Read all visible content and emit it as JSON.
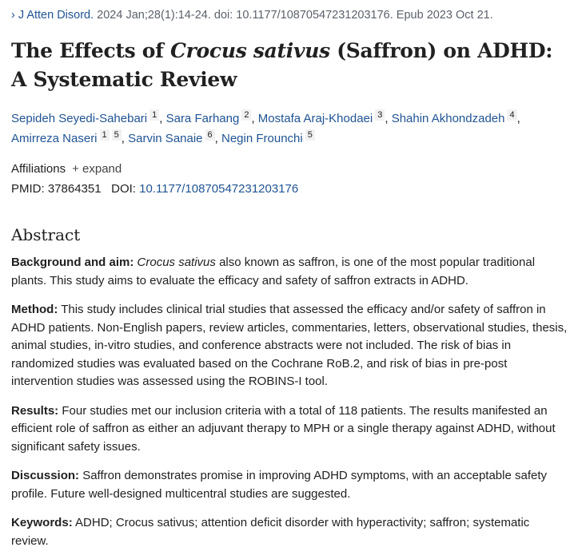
{
  "citation": {
    "journal": "J Atten Disord.",
    "details": "2024 Jan;28(1):14-24. doi: 10.1177/10870547231203176. Epub 2023 Oct 21."
  },
  "title": {
    "part1": "The Effects of ",
    "italic": "Crocus sativus",
    "part2": " (Saffron) on ADHD: A Systematic Review"
  },
  "authors": [
    {
      "name": "Sepideh Seyedi-Sahebari",
      "affs": [
        "1"
      ]
    },
    {
      "name": "Sara Farhang",
      "affs": [
        "2"
      ]
    },
    {
      "name": "Mostafa Araj-Khodaei",
      "affs": [
        "3"
      ]
    },
    {
      "name": "Shahin Akhondzadeh",
      "affs": [
        "4"
      ]
    },
    {
      "name": "Amirreza Naseri",
      "affs": [
        "1",
        "5"
      ]
    },
    {
      "name": "Sarvin Sanaie",
      "affs": [
        "6"
      ]
    },
    {
      "name": "Negin Frounchi",
      "affs": [
        "5"
      ]
    }
  ],
  "affiliations": {
    "label": "Affiliations",
    "expand": "+ expand"
  },
  "ids": {
    "pmid_label": "PMID:",
    "pmid": "37864351",
    "doi_label": "DOI:",
    "doi": "10.1177/10870547231203176"
  },
  "abstract": {
    "heading": "Abstract",
    "background": {
      "label": "Background and aim:",
      "italic": "Crocus sativus",
      "text": " also known as saffron, is one of the most popular traditional plants. This study aims to evaluate the efficacy and safety of saffron extracts in ADHD."
    },
    "method": {
      "label": "Method:",
      "text": " This study includes clinical trial studies that assessed the efficacy and/or safety of saffron in ADHD patients. Non-English papers, review articles, commentaries, letters, observational studies, thesis, animal studies, in-vitro studies, and conference abstracts were not included. The risk of bias in randomized studies was evaluated based on the Cochrane RoB.2, and risk of bias in pre-post intervention studies was assessed using the ROBINS-I tool."
    },
    "results": {
      "label": "Results:",
      "text": " Four studies met our inclusion criteria with a total of 118 patients. The results manifested an efficient role of saffron as either an adjuvant therapy to MPH or a single therapy against ADHD, without significant safety issues."
    },
    "discussion": {
      "label": "Discussion:",
      "text": " Saffron demonstrates promise in improving ADHD symptoms, with an acceptable safety profile. Future well-designed multicentral studies are suggested."
    },
    "keywords": {
      "label": "Keywords:",
      "text": " ADHD; Crocus sativus; attention deficit disorder with hyperactivity; saffron; systematic review."
    }
  }
}
